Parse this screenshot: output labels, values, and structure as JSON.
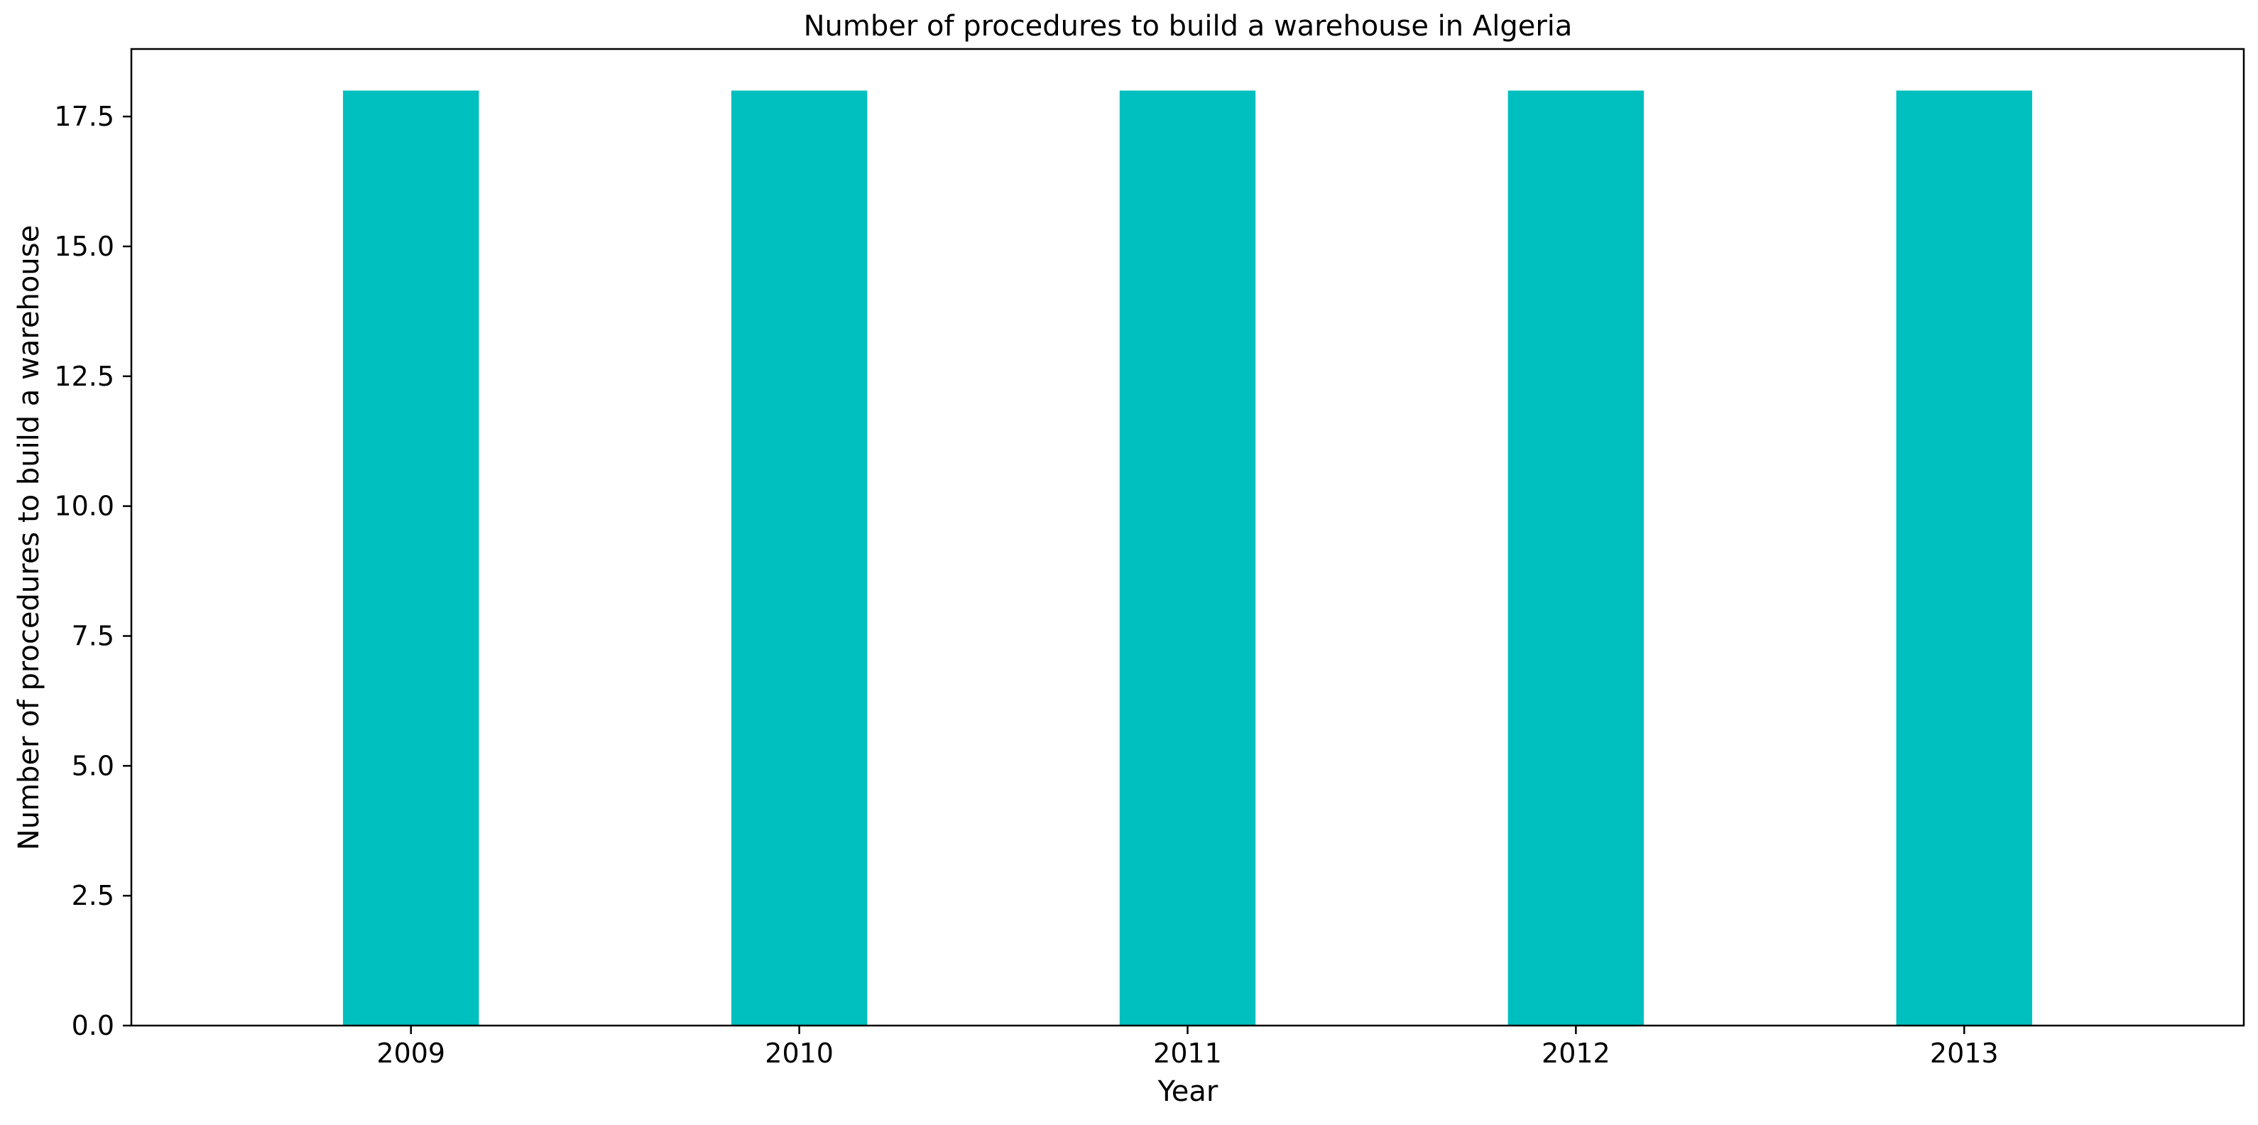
{
  "chart_data": {
    "type": "bar",
    "title": "Number of procedures to build a warehouse in Algeria",
    "xlabel": "Year",
    "ylabel": "Number of procedures to build a warehouse",
    "categories": [
      "2009",
      "2010",
      "2011",
      "2012",
      "2013"
    ],
    "values": [
      18,
      18,
      18,
      18,
      18
    ],
    "ylim": [
      0,
      18.8
    ],
    "yticks": [
      0.0,
      2.5,
      5.0,
      7.5,
      10.0,
      12.5,
      15.0,
      17.5
    ],
    "ytick_labels": [
      "0.0",
      "2.5",
      "5.0",
      "7.5",
      "10.0",
      "12.5",
      "15.0",
      "17.5"
    ],
    "grid": false,
    "bar_color": "#00BFBF"
  }
}
